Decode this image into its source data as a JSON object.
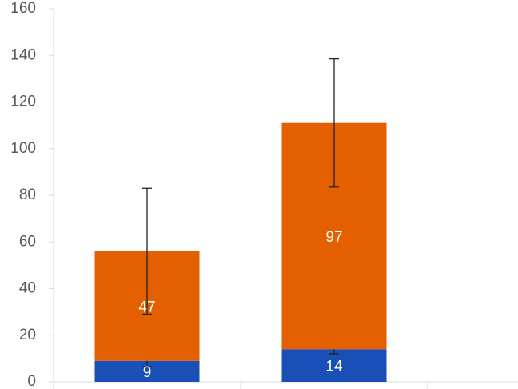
{
  "chart_data": {
    "type": "stacked_bar",
    "categories": [
      null,
      null,
      null
    ],
    "series": [
      {
        "color": "#1a4fb8",
        "values": [
          9,
          14,
          null
        ],
        "errors": [
          2.5,
          2,
          null
        ]
      },
      {
        "color": "#e35f00",
        "values": [
          47,
          97,
          null
        ],
        "errors": [
          27,
          27.5,
          null
        ]
      }
    ],
    "ylim": [
      0,
      160
    ],
    "yticks": [
      0,
      20,
      40,
      60,
      80,
      100,
      120,
      140,
      160
    ],
    "grid": false,
    "data_labels": true
  }
}
